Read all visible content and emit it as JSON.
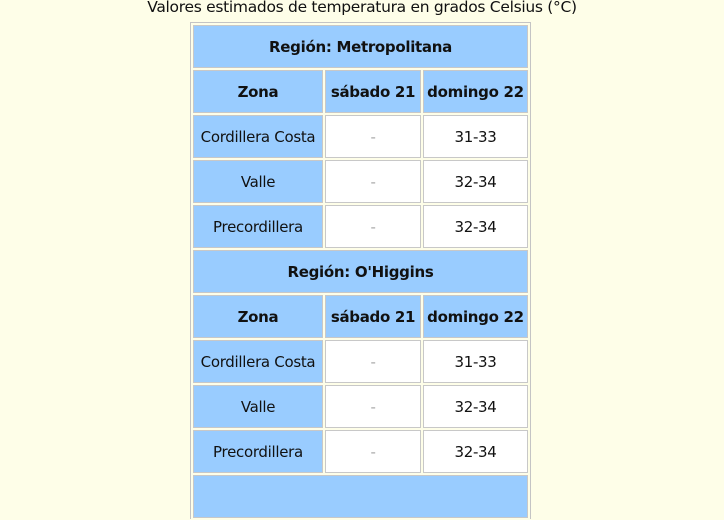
{
  "caption": "Valores estimados de temperatura en grados Celsius (°C)",
  "colors": {
    "header_bg": "#99ccff",
    "page_bg": "#fefee8",
    "cell_bg": "#ffffff"
  },
  "regions": [
    {
      "title": "Región: Metropolitana",
      "headers": [
        "Zona",
        "sábado 21",
        "domingo 22"
      ],
      "rows": [
        [
          "Cordillera Costa",
          "-",
          "31-33"
        ],
        [
          "Valle",
          "-",
          "32-34"
        ],
        [
          "Precordillera",
          "-",
          "32-34"
        ]
      ]
    },
    {
      "title": "Región: O'Higgins",
      "headers": [
        "Zona",
        "sábado 21",
        "domingo 22"
      ],
      "rows": [
        [
          "Cordillera Costa",
          "-",
          "31-33"
        ],
        [
          "Valle",
          "-",
          "32-34"
        ],
        [
          "Precordillera",
          "-",
          "32-34"
        ]
      ]
    }
  ]
}
